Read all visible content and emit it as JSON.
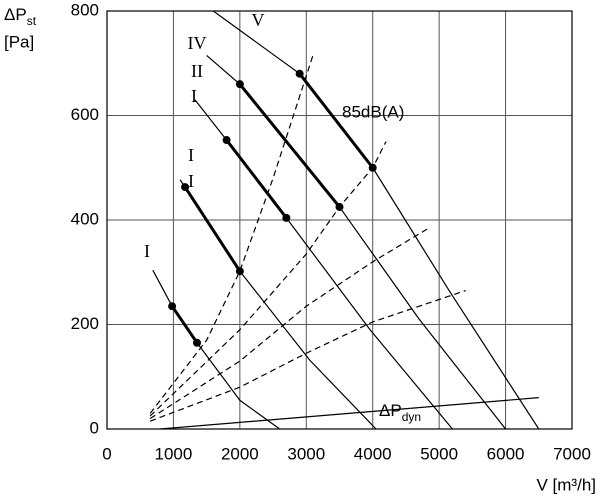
{
  "chart_data": {
    "type": "line",
    "ylabel": {
      "main": "ΔP",
      "sub": "st",
      "unit": "[Pa]"
    },
    "xlabel": "V [m³/h]",
    "xlim": [
      0,
      7000
    ],
    "xticks": [
      0,
      1000,
      2000,
      3000,
      4000,
      5000,
      6000,
      7000
    ],
    "ylim": [
      0,
      800
    ],
    "yticks": [
      0,
      200,
      400,
      600,
      800
    ],
    "grid": true,
    "series": [
      {
        "color": "#000000",
        "linestyle": "solid",
        "linewidth": 1.2,
        "x": [
          1600,
          2900,
          4000,
          5150,
          6500
        ],
        "values": [
          800,
          680,
          500,
          265,
          0
        ]
      },
      {
        "color": "#000000",
        "linestyle": "solid",
        "linewidth": 1.2,
        "x": [
          1500,
          2000,
          3500,
          4700,
          6000
        ],
        "values": [
          715,
          660,
          425,
          210,
          0
        ]
      },
      {
        "color": "#000000",
        "linestyle": "solid",
        "linewidth": 1.2,
        "x": [
          1325,
          1800,
          2700,
          3960,
          5200
        ],
        "values": [
          630,
          553,
          404,
          190,
          0
        ]
      },
      {
        "color": "#000000",
        "linestyle": "solid",
        "linewidth": 1.2,
        "x": [
          1100,
          1175,
          2000,
          3050,
          4050
        ],
        "values": [
          477,
          463,
          302,
          132,
          0
        ]
      },
      {
        "color": "#000000",
        "linestyle": "solid",
        "linewidth": 1.2,
        "x": [
          690,
          980,
          1355,
          2000,
          2600
        ],
        "values": [
          304,
          235,
          165,
          55,
          0
        ]
      },
      {
        "color": "#000000",
        "linestyle": "solid",
        "linewidth": 3,
        "markers": true,
        "x": [
          2900,
          4000
        ],
        "values": [
          680,
          500
        ]
      },
      {
        "color": "#000000",
        "linestyle": "solid",
        "linewidth": 3,
        "markers": true,
        "x": [
          2000,
          3500
        ],
        "values": [
          660,
          425
        ]
      },
      {
        "color": "#000000",
        "linestyle": "solid",
        "linewidth": 3,
        "markers": true,
        "x": [
          1800,
          2700
        ],
        "values": [
          553,
          404
        ]
      },
      {
        "color": "#000000",
        "linestyle": "solid",
        "linewidth": 3,
        "markers": true,
        "x": [
          1175,
          2000
        ],
        "values": [
          463,
          302
        ]
      },
      {
        "color": "#000000",
        "linestyle": "solid",
        "linewidth": 3,
        "markers": true,
        "x": [
          980,
          1355
        ],
        "values": [
          235,
          165
        ]
      },
      {
        "color": "#000000",
        "linestyle": "dashed",
        "linewidth": 1.2,
        "x": [
          650,
          1500,
          2000,
          2500,
          3100
        ],
        "values": [
          30,
          170,
          302,
          480,
          715
        ]
      },
      {
        "color": "#000000",
        "linestyle": "dashed",
        "linewidth": 1.2,
        "x": [
          650,
          2000,
          3000,
          3500,
          4000,
          4200
        ],
        "values": [
          25,
          190,
          335,
          425,
          500,
          550
        ]
      },
      {
        "color": "#000000",
        "linestyle": "dashed",
        "linewidth": 1.2,
        "x": [
          650,
          2000,
          3000,
          4000,
          4850
        ],
        "values": [
          20,
          130,
          235,
          320,
          385
        ]
      },
      {
        "color": "#000000",
        "linestyle": "dashed",
        "linewidth": 1.2,
        "x": [
          650,
          2000,
          3000,
          4000,
          5400
        ],
        "values": [
          15,
          80,
          145,
          205,
          265
        ]
      },
      {
        "color": "#000000",
        "linestyle": "solid",
        "linewidth": 1.2,
        "x": [
          800,
          6500
        ],
        "values": [
          0,
          60
        ]
      }
    ],
    "annotations": [
      "V",
      "IV",
      "II",
      "I",
      "I",
      "I",
      "I",
      "85dB(A)",
      {
        "main": "ΔP",
        "sub": "dyn"
      }
    ]
  }
}
